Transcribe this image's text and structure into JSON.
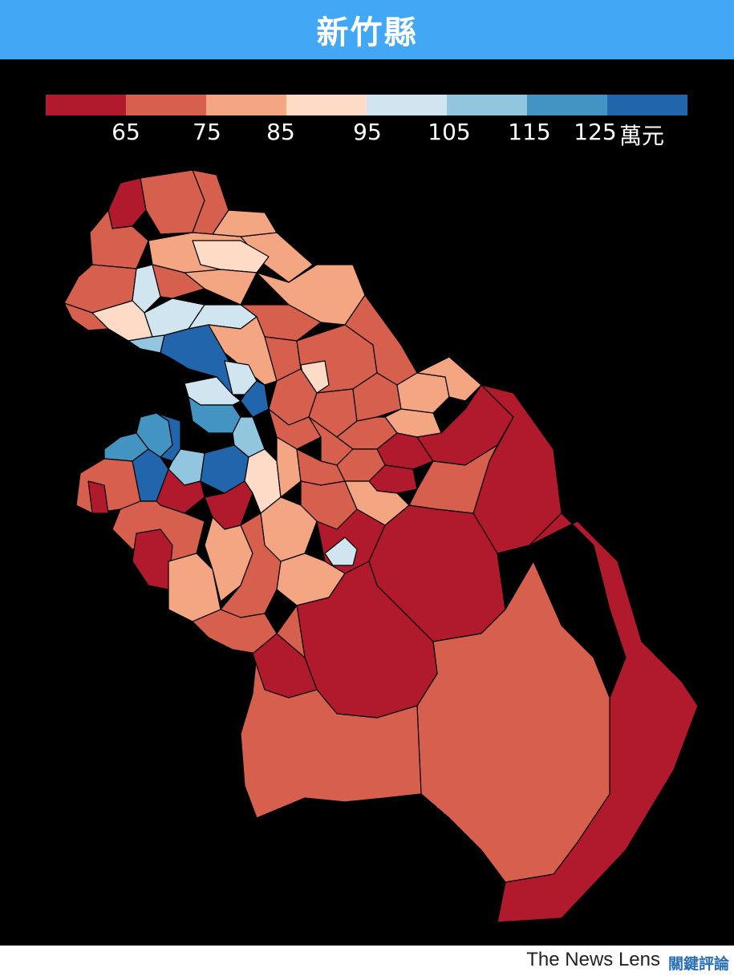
{
  "header": {
    "title": "新竹縣",
    "background": "#42a8f5"
  },
  "legend": {
    "colors": [
      "#b01a2c",
      "#d6604d",
      "#f4a582",
      "#fddbc7",
      "#d1e5f0",
      "#92c5de",
      "#4393c3",
      "#2166ac"
    ],
    "ticks": [
      "65",
      "75",
      "85",
      "95",
      "105",
      "115",
      "125"
    ],
    "unit": "萬元"
  },
  "footer": {
    "brand": "The News Lens",
    "brand_cn": "關鍵評論"
  }
}
